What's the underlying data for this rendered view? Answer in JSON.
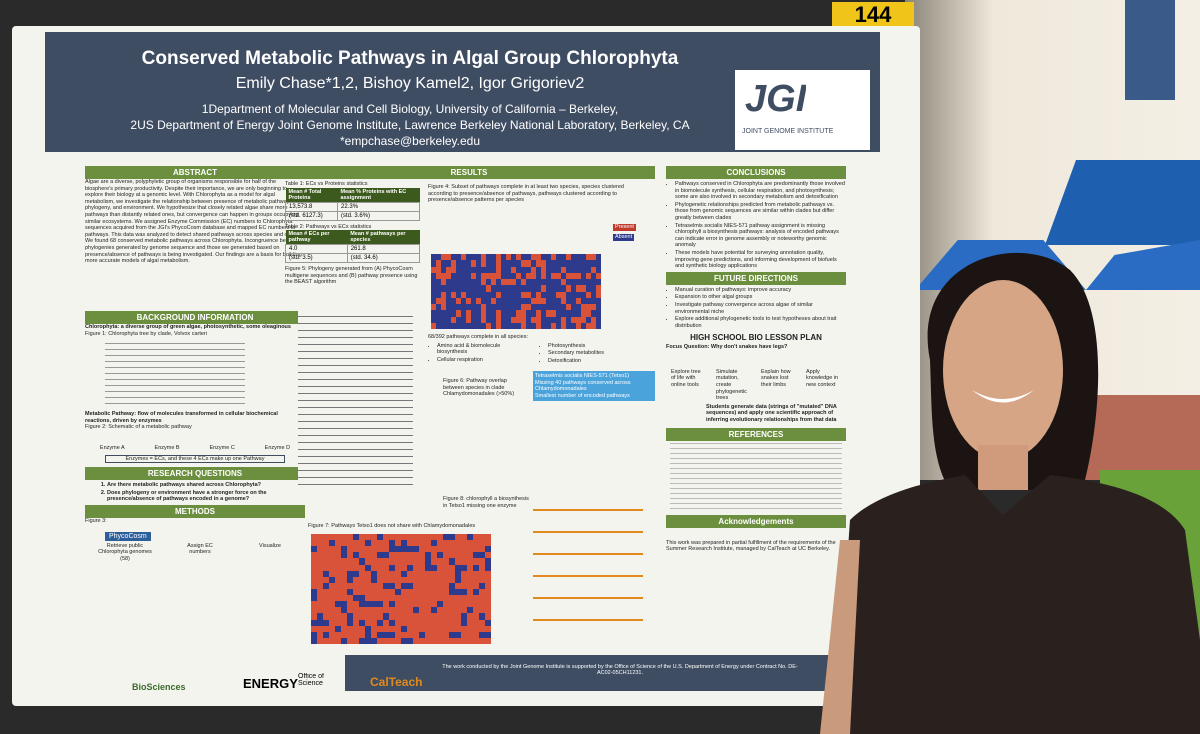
{
  "sign": "144",
  "poster": {
    "title": "Conserved Metabolic Pathways in Algal Group Chlorophyta",
    "authors": "Emily Chase*1,2, Bishoy Kamel2, Igor Grigoriev2",
    "affiliations": [
      "1Department of Molecular and Cell Biology, University of California – Berkeley,",
      "2US Department of Energy Joint Genome Institute, Lawrence Berkeley National Laboratory, Berkeley, CA"
    ],
    "email": "*empchase@berkeley.edu",
    "logo": "JGI",
    "logo_sub": "JOINT GENOME INSTITUTE",
    "abstract": {
      "heading": "ABSTRACT",
      "text": "Algae are a diverse, polyphyletic group of organisms responsible for half of the biosphere's primary productivity. Despite their importance, we are only beginning to explore their biology at a genomic level. With Chlorophyta as a model for algal metabolism, we investigate the relationship between presence of metabolic pathways, phylogeny, and environment. We hypothesize that closely related algae share more pathways than distantly related ones, but convergence can happen in groups occupying similar ecosystems. We assigned Enzyme Commission (EC) numbers to Chlorophyta sequences acquired from the JGI's PhycoCosm database and mapped EC numbers to pathways. This data was analyzed to detect shared pathways across species and clades. We found 68 conserved metabolic pathways across Chlorophyta. Incongruence between phylogenies generated by genome sequence and those we generated based on presence/absence of pathways is being investigated. Our findings are a basis for building more accurate models of algal metabolism."
    },
    "background": {
      "heading": "BACKGROUND INFORMATION",
      "lines": [
        "Chlorophyta: a diverse group of green algae, photosynthetic, some oleaginous",
        "Figure 1: Chlorophyta tree by clade, Volvox carteri",
        "Metabolic Pathway: flow of molecules transformed in cellular biochemical reactions, driven by enzymes",
        "Figure 2: Schematic of a metabolic pathway"
      ],
      "enzymes": [
        "Enzyme A",
        "Enzyme B",
        "Enzyme C",
        "Enzyme D"
      ],
      "note": "Enzymes = ECs, and these 4 ECs make up one Pathway"
    },
    "questions": {
      "heading": "RESEARCH QUESTIONS",
      "items": [
        "Are there metabolic pathways shared across Chlorophyta?",
        "Does phylogeny or environment have a stronger force on the presence/absence of pathways encoded in a genome?"
      ]
    },
    "methods": {
      "heading": "METHODS",
      "figure": "Figure 3:",
      "tool": "PhycoCosm",
      "steps": [
        "Retrieve public Chlorophyta genomes (58)",
        "Assign EC numbers",
        "Visualize"
      ]
    },
    "results": {
      "heading": "RESULTS",
      "table1": {
        "caption": "Table 1: ECs vs Proteins statistics",
        "header": [
          "Mean # Total Proteins",
          "Mean % Proteins with EC assignment"
        ],
        "rows": [
          [
            "13,573.8",
            "22.3%"
          ],
          [
            "(std. 6127.3)",
            "(std. 3.6%)"
          ]
        ]
      },
      "table2": {
        "caption": "Table 2: Pathways vs ECs statistics",
        "header": [
          "Mean # ECs per pathway",
          "Mean # pathways per species"
        ],
        "rows": [
          [
            "4.0",
            "261.8"
          ],
          [
            "(std. 3.5)",
            "(std. 34.6)"
          ]
        ]
      },
      "fig4": "Figure 4: Subset of pathways complete in at least two species, species clustered according to presence/absence of pathways, pathways clustered according to presence/absence patterns per species",
      "legend": [
        "Present",
        "Absent"
      ],
      "fig5": "Figure 5: Phylogeny generated from (A) PhycoCosm multigene sequences and (B) pathway presence using the BEAST algorithm",
      "complete": "68/392 pathways complete in all species:",
      "complete_items": [
        "Amino acid & biomolecule biosynthesis",
        "Cellular respiration",
        "Photosynthesis",
        "Secondary metabolites",
        "Detoxification"
      ],
      "callout": [
        "Tetraselmis socialis NIES-571 (Tetso1)",
        "Missing 40 pathways conserved across Chlamydomonadales",
        "Smallest number of encoded pathways"
      ],
      "fig6": "Figure 6: Pathway overlap between species in clade Chlamydomonadales (>50%)",
      "fig7": "Figure 7: Pathways Tetso1 does not share with Chlamydomonadales",
      "fig8": "Figure 8: chlorophyll a biosynthesis in Tetso1 missing one enzyme"
    },
    "conclusions": {
      "heading": "CONCLUSIONS",
      "items": [
        "Pathways conserved in Chlorophyta are predominantly those involved in biomolecule synthesis, cellular respiration, and photosynthesis; some are also involved in secondary metabolism and detoxification",
        "Phylogenetic relationships predicted from metabolic pathways vs. those from genomic sequences are similar within clades but differ greatly between clades",
        "Tetraselmis socialis NIES-571 pathway assignment is missing chlorophyll a biosynthesis pathways: analysis of encoded pathways can indicate error in genome assembly or noteworthy genomic anomaly",
        "These models have potential for surveying annotation quality, improving gene predictions, and informing development of biofuels and synthetic biology applications"
      ]
    },
    "future": {
      "heading": "FUTURE DIRECTIONS",
      "items": [
        "Manual curation of pathways: improve accuracy",
        "Expansion to other algal groups",
        "Investigate pathway convergence across algae of similar environmental niche",
        "Explore additional phylogenetic tools to test hypotheses about trait distribution"
      ]
    },
    "lesson": {
      "heading": "HIGH SCHOOL BIO LESSON PLAN",
      "question": "Focus Question: Why don't snakes have legs?",
      "steps": [
        "Explore tree of life with online tools",
        "Simulate mutation, create phylogenetic trees",
        "Explain how snakes lost their limbs",
        "Apply knowledge in new context"
      ],
      "summary": "Students generate data (strings of \"mutated\" DNA sequences) and apply one scientific approach of inferring evolutionary relationships from that data"
    },
    "references": {
      "heading": "REFERENCES"
    },
    "acknowledgements": {
      "heading": "Acknowledgements",
      "text": "This work was prepared in partial fulfillment of the requirements of the Summer Research Institute, managed by CalTeach at UC Berkeley."
    },
    "footer": "The work conducted by the Joint Genome Institute is supported by the Office of Science of the U.S. Department of Energy under Contract No. DE-AC02-05CH11231.",
    "logos": [
      "BioSciences",
      "ENERGY",
      "Office of Science",
      "CalTeach"
    ]
  }
}
